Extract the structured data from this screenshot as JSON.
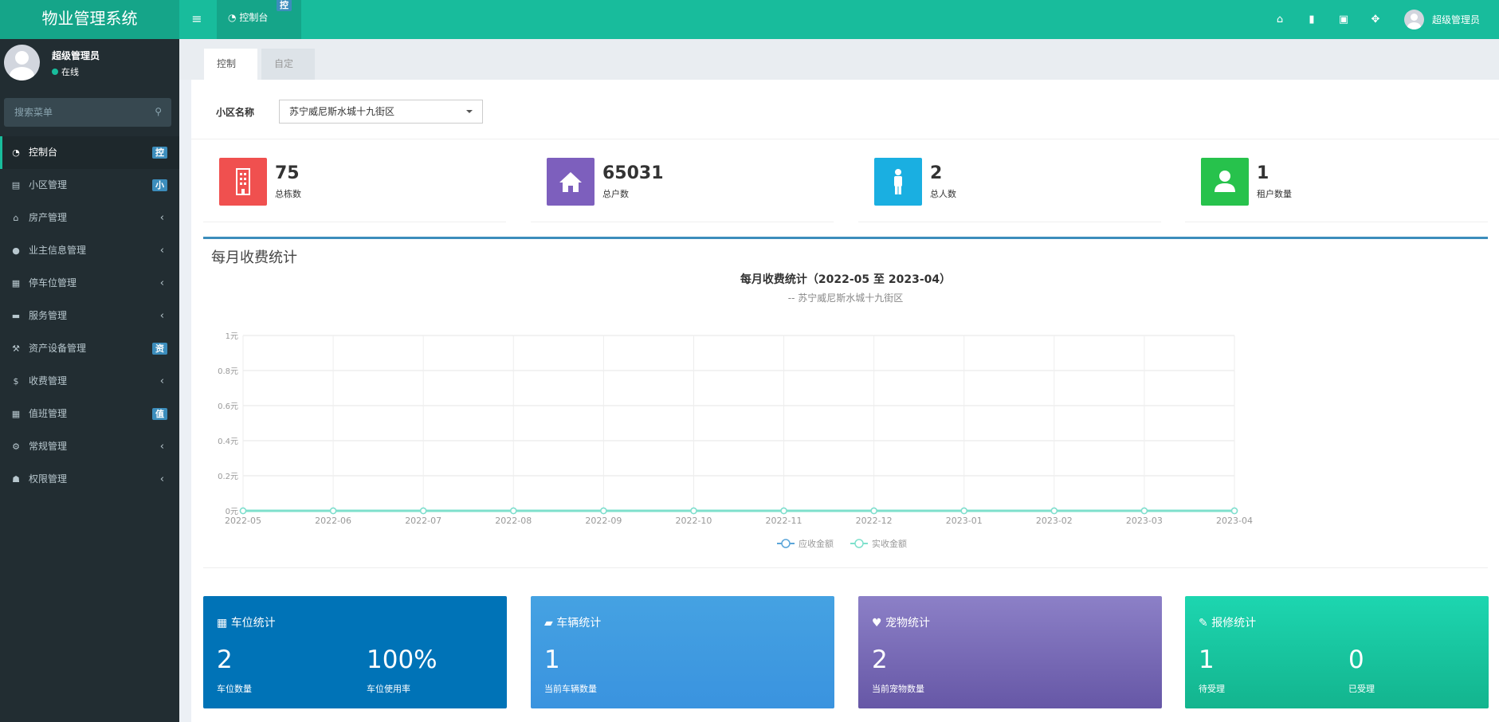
{
  "app": {
    "title": "物业管理系统"
  },
  "header": {
    "menu_icon": "bars-icon",
    "tab_label": "控制台",
    "tab_badge": "控",
    "icons": [
      "home-icon",
      "trash-icon",
      "language-icon",
      "fullscreen-icon"
    ],
    "user_name": "超级管理员"
  },
  "sidebar": {
    "user_name": "超级管理员",
    "status": "在线",
    "search_placeholder": "搜索菜单",
    "items": [
      {
        "label": "控制台",
        "icon": "dashboard-icon",
        "badge": "控",
        "active": true
      },
      {
        "label": "小区管理",
        "icon": "list-icon",
        "badge": "小"
      },
      {
        "label": "房产管理",
        "icon": "home-icon",
        "arrow": "‹"
      },
      {
        "label": "业主信息管理",
        "icon": "user-icon",
        "arrow": "‹"
      },
      {
        "label": "停车位管理",
        "icon": "film-icon",
        "arrow": "‹"
      },
      {
        "label": "服务管理",
        "icon": "coffee-icon",
        "arrow": "‹"
      },
      {
        "label": "资产设备管理",
        "icon": "gavel-icon",
        "badge": "资"
      },
      {
        "label": "收费管理",
        "icon": "dollar-icon",
        "arrow": "‹"
      },
      {
        "label": "值班管理",
        "icon": "calendar-icon",
        "badge": "值"
      },
      {
        "label": "常规管理",
        "icon": "cogs-icon",
        "arrow": "‹"
      },
      {
        "label": "权限管理",
        "icon": "group-icon",
        "arrow": "‹"
      }
    ]
  },
  "content_tabs": [
    {
      "label": "控制台",
      "active": true
    },
    {
      "label": "自定义",
      "active": false
    }
  ],
  "filter": {
    "label": "小区名称",
    "selected": "苏宁威尼斯水城十九街区"
  },
  "stats": [
    {
      "value": "75",
      "label": "总栋数",
      "color": "#f0504f",
      "icon": "building-icon"
    },
    {
      "value": "65031",
      "label": "总户数",
      "color": "#7d5fbd",
      "icon": "home-icon"
    },
    {
      "value": "2",
      "label": "总人数",
      "color": "#1aafe1",
      "icon": "male-icon"
    },
    {
      "value": "1",
      "label": "租户数量",
      "color": "#27c24c",
      "icon": "user-icon"
    }
  ],
  "chart_box_title": "每月收费统计",
  "chart_data": {
    "type": "line",
    "title": "每月收费统计（2022-05 至 2023-04）",
    "subtitle": "-- 苏宁威尼斯水城十九街区",
    "categories": [
      "2022-05",
      "2022-06",
      "2022-07",
      "2022-08",
      "2022-09",
      "2022-10",
      "2022-11",
      "2022-12",
      "2023-01",
      "2023-02",
      "2023-03",
      "2023-04"
    ],
    "y_ticks": [
      "0元",
      "0.2元",
      "0.4元",
      "0.6元",
      "0.8元",
      "1元"
    ],
    "ylim": [
      0,
      1
    ],
    "grid": true,
    "legend_position": "bottom",
    "series": [
      {
        "name": "应收金额",
        "color": "#5aa5d9",
        "values": [
          0,
          0,
          0,
          0,
          0,
          0,
          0,
          0,
          0,
          0,
          0,
          0
        ]
      },
      {
        "name": "实收金额",
        "color": "#7ee0cc",
        "values": [
          0,
          0,
          0,
          0,
          0,
          0,
          0,
          0,
          0,
          0,
          0,
          0
        ]
      }
    ]
  },
  "cards": [
    {
      "title": "车位统计",
      "icon": "film-icon",
      "bg": "#0073b7",
      "metrics": [
        {
          "value": "2",
          "label": "车位数量"
        },
        {
          "value": "100%",
          "label": "车位使用率"
        }
      ]
    },
    {
      "title": "车辆统计",
      "icon": "truck-icon",
      "bg": "#3c9ae0",
      "metrics": [
        {
          "value": "1",
          "label": "当前车辆数量"
        }
      ]
    },
    {
      "title": "宠物统计",
      "icon": "heart-icon",
      "bg": "#7864b4",
      "metrics": [
        {
          "value": "2",
          "label": "当前宠物数量"
        }
      ]
    },
    {
      "title": "报修统计",
      "icon": "wrench-icon",
      "bg": "#17c9a3",
      "metrics": [
        {
          "value": "1",
          "label": "待受理"
        },
        {
          "value": "0",
          "label": "已受理"
        }
      ]
    }
  ]
}
